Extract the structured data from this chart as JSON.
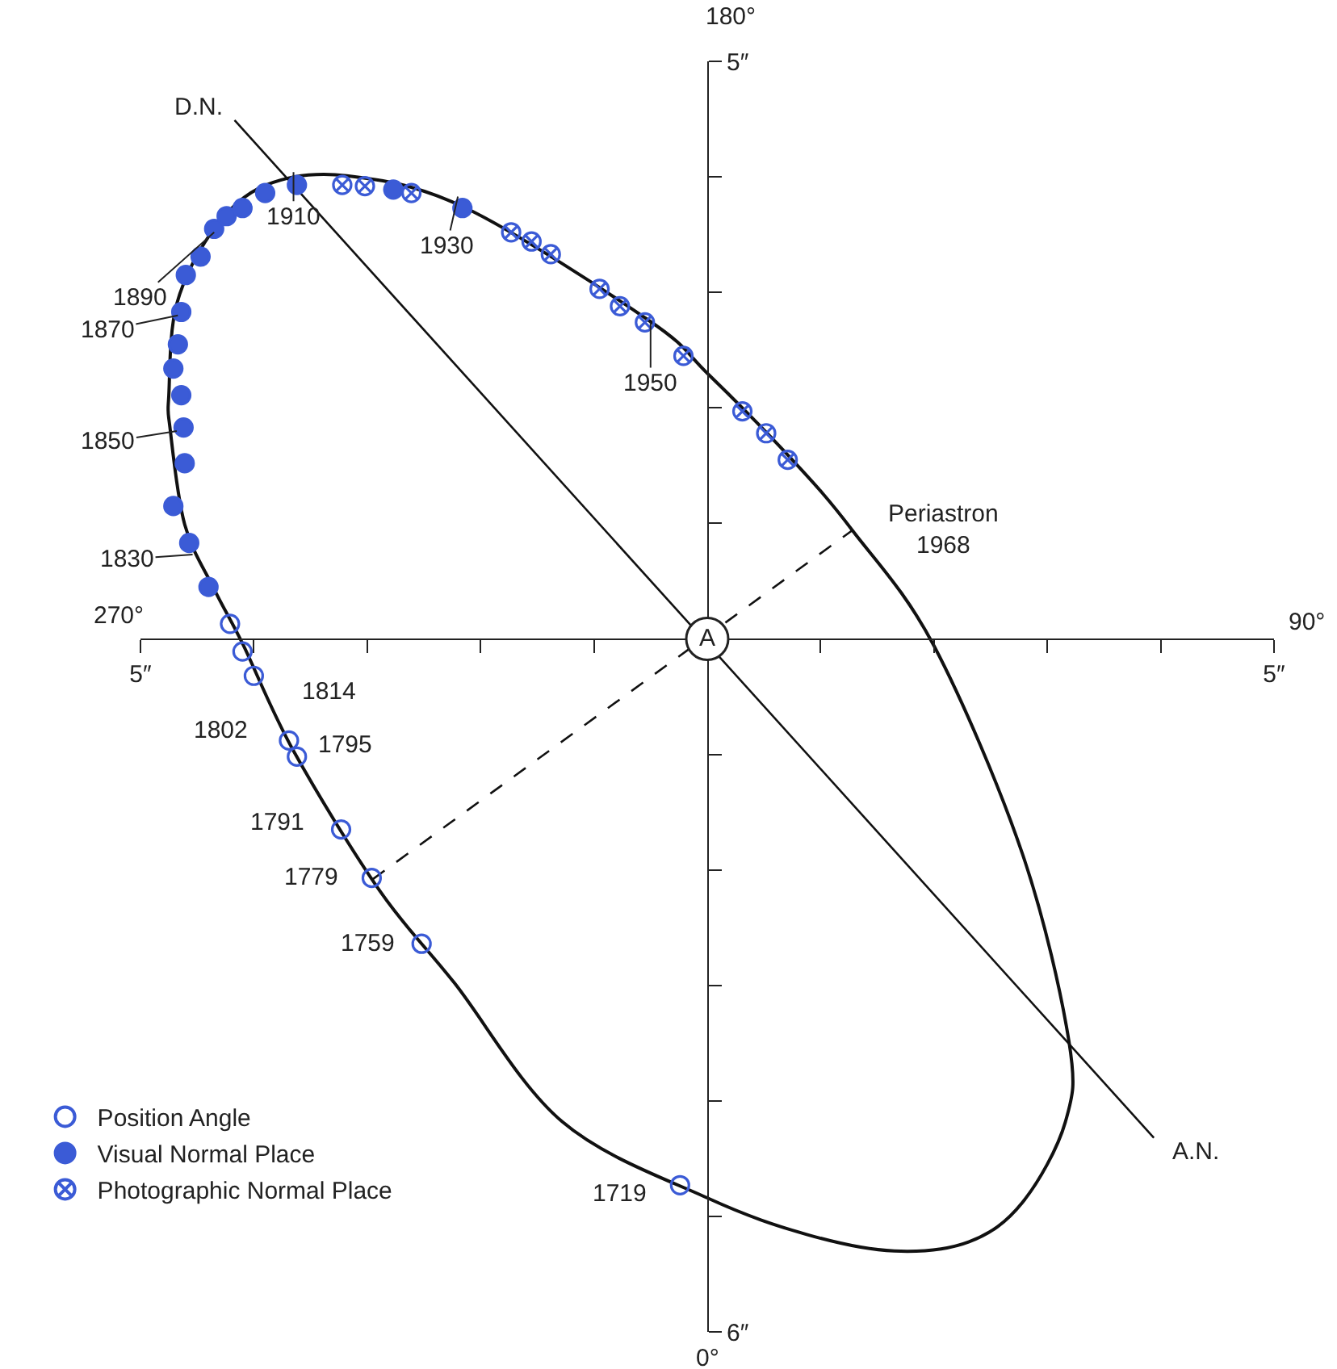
{
  "chart_data": {
    "type": "scatter",
    "xlim": [
      -5,
      5
    ],
    "ylim": [
      -6,
      5
    ],
    "xticks": [
      {
        "value": -5,
        "label": "5″"
      },
      {
        "value": -4,
        "label": null
      },
      {
        "value": -3,
        "label": null
      },
      {
        "value": -2,
        "label": null
      },
      {
        "value": -1,
        "label": null
      },
      {
        "value": 1,
        "label": null
      },
      {
        "value": 2,
        "label": null
      },
      {
        "value": 3,
        "label": null
      },
      {
        "value": 4,
        "label": null
      },
      {
        "value": 5,
        "label": "5″"
      }
    ],
    "yticks": [
      {
        "value": -6,
        "label": "6″"
      },
      {
        "value": -5,
        "label": null
      },
      {
        "value": -4,
        "label": null
      },
      {
        "value": -3,
        "label": null
      },
      {
        "value": -2,
        "label": null
      },
      {
        "value": -1,
        "label": null
      },
      {
        "value": 1,
        "label": null
      },
      {
        "value": 2,
        "label": null
      },
      {
        "value": 3,
        "label": null
      },
      {
        "value": 4,
        "label": null
      },
      {
        "value": 5,
        "label": "5″"
      }
    ],
    "grid": false,
    "legend": "bottom left",
    "series": [
      {
        "type": "line",
        "color": "#111111",
        "line_style": "solid",
        "x": [
          -4.17,
          3.94
        ],
        "values": [
          4.49,
          -4.32
        ]
      },
      {
        "type": "line",
        "color": "#111111",
        "line_style": "dashed",
        "x": [
          -2.95,
          1.28
        ],
        "values": [
          -2.08,
          0.94
        ]
      },
      {
        "name": "Position Angle",
        "color": "#3b5bd6",
        "marker": "circle-open",
        "x": [
          -0.24,
          -2.52,
          -2.96,
          -3.23,
          -3.62,
          -3.69,
          -4.0,
          -4.1,
          -4.21
        ],
        "values": [
          -4.73,
          -2.64,
          -2.07,
          -1.65,
          -1.02,
          -0.88,
          -0.32,
          -0.11,
          0.13
        ]
      },
      {
        "name": "Visual Normal Place",
        "color": "#3b5bd6",
        "marker": "circle",
        "x": [
          -4.4,
          -4.57,
          -4.71,
          -4.61,
          -4.62,
          -4.64,
          -4.71,
          -4.67,
          -4.64,
          -4.6,
          -4.47,
          -4.35,
          -4.24,
          -4.1,
          -3.9,
          -3.62,
          -2.77,
          -2.16
        ],
        "values": [
          0.45,
          0.83,
          1.15,
          1.52,
          1.83,
          2.11,
          2.34,
          2.55,
          2.83,
          3.15,
          3.31,
          3.55,
          3.66,
          3.73,
          3.86,
          3.93,
          3.89,
          3.73
        ]
      },
      {
        "name": "Photographic Normal Place",
        "color": "#3b5bd6",
        "marker": "cross",
        "x": [
          -3.22,
          -3.02,
          -2.61,
          -1.73,
          -1.55,
          -1.38,
          -0.95,
          -0.77,
          -0.55,
          -0.21,
          0.31,
          0.52,
          0.71
        ],
        "values": [
          3.93,
          3.92,
          3.86,
          3.52,
          3.44,
          3.33,
          3.03,
          2.88,
          2.74,
          2.45,
          1.97,
          1.78,
          1.55
        ]
      }
    ],
    "annotations": [
      "180°",
      "270°",
      "90°",
      "0°",
      {
        "text": "D.N.",
        "x": -4.17,
        "y": 4.49
      },
      {
        "text": "A.N.",
        "x": 3.94,
        "y": -4.32
      },
      {
        "text": "A",
        "x": 0,
        "y": 0
      },
      {
        "text": "Periastron\n1968",
        "x": 1.28,
        "y": 0.94
      },
      {
        "text": "1910",
        "x": -3.65,
        "y": 4.04
      },
      {
        "text": "1930",
        "x": -2.2,
        "y": 3.83
      },
      {
        "text": "1950",
        "x": -0.5,
        "y": 2.74
      },
      {
        "text": "1890",
        "x": -4.35,
        "y": 3.52
      },
      {
        "text": "1870",
        "x": -4.67,
        "y": 2.8
      },
      {
        "text": "1850",
        "x": -4.68,
        "y": 1.8
      },
      {
        "text": "1830",
        "x": -4.54,
        "y": 0.73
      },
      {
        "text": "1814",
        "x": -4.0,
        "y": -0.32
      },
      {
        "text": "1802",
        "x": -3.69,
        "y": -0.88
      },
      {
        "text": "1795",
        "x": -3.62,
        "y": -1.02
      },
      {
        "text": "1791",
        "x": -3.23,
        "y": -1.65
      },
      {
        "text": "1779",
        "x": -2.96,
        "y": -2.07
      },
      {
        "text": "1759",
        "x": -2.52,
        "y": -2.64
      },
      {
        "text": "1719",
        "x": -0.24,
        "y": -4.73
      }
    ]
  }
}
